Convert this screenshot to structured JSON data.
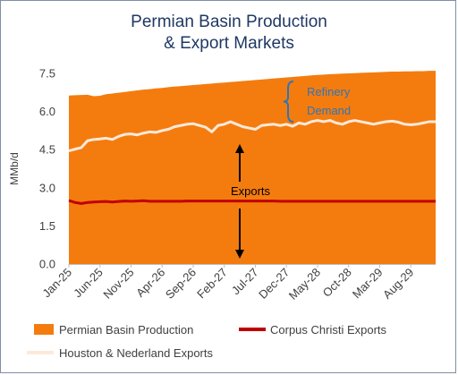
{
  "chart_data": {
    "type": "area",
    "title_line1": "Permian Basin Production",
    "title_line2": "& Export Markets",
    "ylabel": "MMb/d",
    "ylim": [
      0,
      7.5
    ],
    "yticks": [
      "0.0",
      "1.5",
      "3.0",
      "4.5",
      "6.0",
      "7.5"
    ],
    "x_tick_labels": [
      "Jan-25",
      "Jun-25",
      "Nov-25",
      "Apr-26",
      "Sep-26",
      "Feb-27",
      "Jul-27",
      "Dec-27",
      "May-28",
      "Oct-28",
      "Mar-29",
      "Aug-29"
    ],
    "x_start": "Jan-25",
    "x_end": "Dec-29",
    "series": [
      {
        "name": "Permian Basin Production",
        "kind": "area",
        "color": "#f47c0f",
        "values": [
          6.63,
          6.64,
          6.65,
          6.66,
          6.6,
          6.62,
          6.68,
          6.71,
          6.74,
          6.77,
          6.8,
          6.83,
          6.86,
          6.88,
          6.91,
          6.93,
          6.96,
          6.98,
          7.0,
          7.02,
          7.04,
          7.06,
          7.08,
          7.1,
          7.12,
          7.14,
          7.16,
          7.18,
          7.2,
          7.22,
          7.24,
          7.26,
          7.28,
          7.3,
          7.32,
          7.34,
          7.36,
          7.38,
          7.4,
          7.42,
          7.44,
          7.45,
          7.47,
          7.48,
          7.49,
          7.5,
          7.51,
          7.52,
          7.53,
          7.54,
          7.55,
          7.56,
          7.57,
          7.57,
          7.58,
          7.58,
          7.59,
          7.59,
          7.6,
          7.6
        ]
      },
      {
        "name": "Corpus Christi Exports",
        "kind": "line",
        "color": "#c00000",
        "values": [
          2.5,
          2.42,
          2.38,
          2.42,
          2.44,
          2.45,
          2.46,
          2.44,
          2.46,
          2.48,
          2.47,
          2.48,
          2.49,
          2.47,
          2.47,
          2.47,
          2.47,
          2.47,
          2.47,
          2.48,
          2.48,
          2.48,
          2.48,
          2.48,
          2.48,
          2.48,
          2.48,
          2.48,
          2.48,
          2.48,
          2.48,
          2.48,
          2.48,
          2.48,
          2.47,
          2.47,
          2.47,
          2.47,
          2.47,
          2.47,
          2.47,
          2.47,
          2.47,
          2.47,
          2.47,
          2.47,
          2.47,
          2.47,
          2.47,
          2.47,
          2.47,
          2.47,
          2.47,
          2.47,
          2.47,
          2.47,
          2.47,
          2.47,
          2.47,
          2.47
        ]
      },
      {
        "name": "Houston & Nederland Exports",
        "kind": "line",
        "color": "#fde9d9",
        "values": [
          4.45,
          4.52,
          4.58,
          4.85,
          4.9,
          4.92,
          4.95,
          4.9,
          5.02,
          5.1,
          5.12,
          5.08,
          5.15,
          5.2,
          5.18,
          5.25,
          5.3,
          5.4,
          5.45,
          5.5,
          5.52,
          5.45,
          5.38,
          5.2,
          5.45,
          5.5,
          5.6,
          5.5,
          5.4,
          5.35,
          5.3,
          5.45,
          5.48,
          5.5,
          5.45,
          5.5,
          5.42,
          5.55,
          5.5,
          5.6,
          5.65,
          5.6,
          5.65,
          5.55,
          5.5,
          5.6,
          5.65,
          5.6,
          5.55,
          5.5,
          5.55,
          5.6,
          5.62,
          5.58,
          5.5,
          5.48,
          5.5,
          5.55,
          5.6,
          5.6
        ]
      }
    ],
    "annotations": {
      "refinery_line1": "Refinery",
      "refinery_line2": "Demand",
      "exports": "Exports"
    },
    "colors": {
      "refinery_text": "#2e75b6",
      "exports_text": "#000000",
      "axis_text": "#404040",
      "title": "#1f3864"
    },
    "grid": false,
    "legend_position": "bottom"
  }
}
